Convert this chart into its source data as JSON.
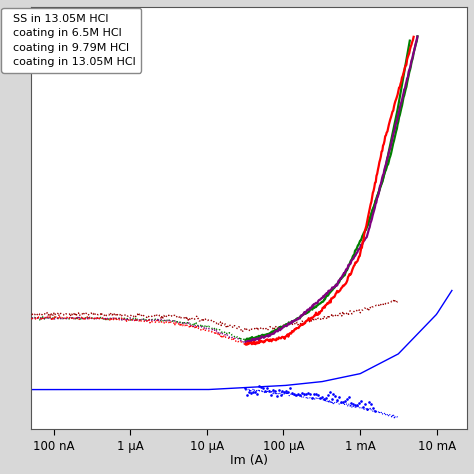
{
  "xlabel": "Im (A)",
  "legend_entries": [
    "SS in 13.05M HCl",
    "coating in 6.5M HCl",
    "coating in 9.79M HCl",
    "coating in 13.05M HCl"
  ],
  "xtick_labels": [
    "100 nA",
    "1 μA",
    "10 μA",
    "100 μA",
    "1 mA",
    "10 mA"
  ],
  "xtick_values": [
    1e-07,
    1e-06,
    1e-05,
    0.0001,
    0.001,
    0.01
  ],
  "background_color": "#d8d8d8",
  "plot_bg": "#ffffff"
}
